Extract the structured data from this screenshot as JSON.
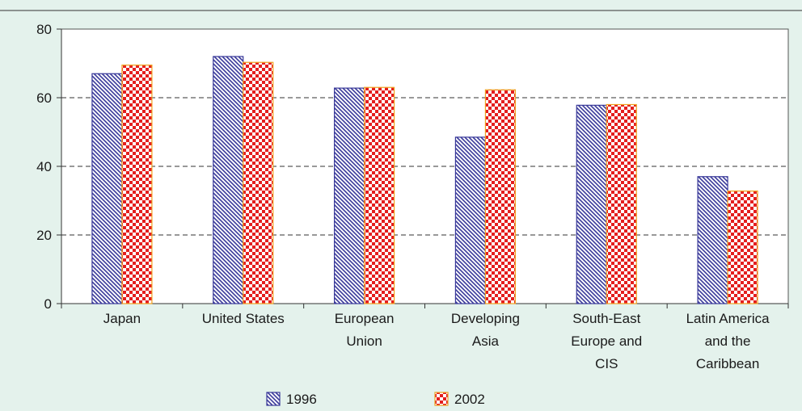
{
  "chart_data": {
    "type": "bar",
    "categories": [
      [
        "Japan"
      ],
      [
        "United States"
      ],
      [
        "European",
        "Union"
      ],
      [
        "Developing",
        "Asia"
      ],
      [
        "South-East",
        "Europe and",
        "CIS"
      ],
      [
        "Latin America",
        "and the",
        "Caribbean"
      ]
    ],
    "series": [
      {
        "name": "1996",
        "values": [
          67,
          72,
          62.8,
          48.5,
          57.8,
          37
        ]
      },
      {
        "name": "2002",
        "values": [
          69.5,
          70.3,
          63,
          62.3,
          58,
          32.8
        ]
      }
    ],
    "ylim": [
      0,
      80
    ],
    "yticks": [
      0,
      20,
      40,
      60,
      80
    ],
    "grid": "dashed at 20, 40, 60",
    "legend_position": "bottom",
    "colors": {
      "page_background": "#e4f2ec",
      "plot_background": "#ffffff",
      "series_1996": "#3a3a9a",
      "series_2002": "#e41e1e",
      "series_2002_border": "#f0a020"
    }
  }
}
